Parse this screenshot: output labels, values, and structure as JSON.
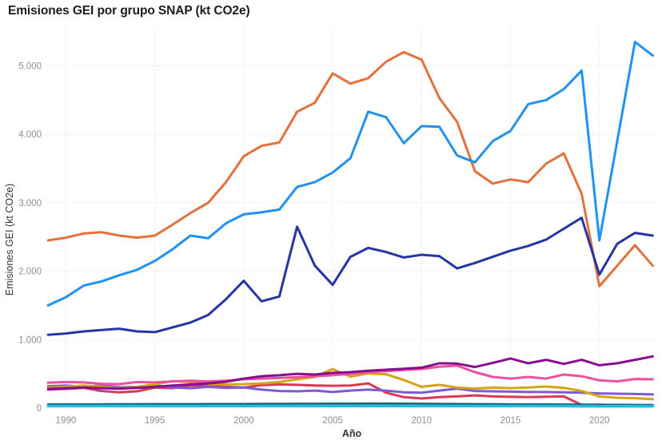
{
  "chart_data": {
    "type": "line",
    "title": "Emisiones GEI por grupo SNAP (kt CO2e)",
    "xlabel": "Año",
    "ylabel": "Emisiones GEI (kt CO2e)",
    "grid": "dotted",
    "legend": "none",
    "xlim": [
      1988.9,
      2023.25
    ],
    "ylim": [
      0,
      5565
    ],
    "x_ticks": [
      1990,
      1995,
      2000,
      2005,
      2010,
      2015,
      2020
    ],
    "x_tick_labels": [
      "1990",
      "1995",
      "2000",
      "2005",
      "2010",
      "2015",
      "2020"
    ],
    "y_ticks": [
      0,
      1000,
      2000,
      3000,
      4000,
      5000
    ],
    "y_tick_labels": [
      "0",
      "1.000",
      "2.000",
      "3.000",
      "4.000",
      "5.000"
    ],
    "x": [
      1989,
      1990,
      1991,
      1992,
      1993,
      1994,
      1995,
      1996,
      1997,
      1998,
      1999,
      2000,
      2001,
      2002,
      2003,
      2004,
      2005,
      2006,
      2007,
      2008,
      2009,
      2010,
      2011,
      2012,
      2013,
      2014,
      2015,
      2016,
      2017,
      2018,
      2019,
      2020,
      2021,
      2022,
      2023
    ],
    "series": [
      {
        "name": "red",
        "color": "#d73a52",
        "values": [
          270,
          280,
          295,
          250,
          230,
          245,
          300,
          290,
          330,
          325,
          310,
          300,
          335,
          345,
          340,
          330,
          325,
          330,
          360,
          225,
          160,
          140,
          160,
          170,
          185,
          170,
          165,
          160,
          165,
          170,
          45,
          50,
          45,
          40,
          35
        ]
      },
      {
        "name": "violet",
        "color": "#7c5cd4",
        "values": [
          320,
          330,
          310,
          330,
          305,
          310,
          330,
          300,
          290,
          310,
          295,
          300,
          270,
          250,
          245,
          255,
          235,
          255,
          270,
          255,
          230,
          225,
          255,
          285,
          250,
          245,
          240,
          235,
          235,
          230,
          225,
          215,
          210,
          205,
          200
        ]
      },
      {
        "name": "gold",
        "color": "#d4a413",
        "values": [
          300,
          310,
          330,
          310,
          290,
          310,
          345,
          395,
          380,
          350,
          345,
          350,
          360,
          380,
          420,
          455,
          570,
          460,
          505,
          495,
          410,
          310,
          340,
          300,
          285,
          300,
          290,
          300,
          315,
          295,
          250,
          170,
          150,
          145,
          130
        ]
      },
      {
        "name": "pink",
        "color": "#ee4fa0",
        "values": [
          370,
          380,
          375,
          355,
          350,
          380,
          375,
          390,
          400,
          390,
          400,
          420,
          430,
          440,
          450,
          465,
          480,
          500,
          525,
          540,
          555,
          570,
          605,
          620,
          525,
          455,
          430,
          455,
          430,
          490,
          465,
          405,
          390,
          425,
          420
        ]
      },
      {
        "name": "dark-purple",
        "color": "#860f8e",
        "values": [
          280,
          290,
          300,
          290,
          285,
          295,
          310,
          330,
          345,
          360,
          385,
          430,
          465,
          480,
          500,
          490,
          515,
          525,
          545,
          560,
          575,
          590,
          655,
          650,
          600,
          660,
          725,
          655,
          705,
          645,
          705,
          625,
          655,
          705,
          755
        ]
      },
      {
        "name": "dark-teal",
        "color": "#156065",
        "values": [
          55,
          55,
          56,
          57,
          58,
          58,
          59,
          60,
          60,
          61,
          62,
          62,
          63,
          63,
          64,
          64,
          65,
          65,
          66,
          66,
          65,
          64,
          63,
          62,
          60,
          58,
          57,
          56,
          55,
          54,
          52,
          50,
          49,
          48,
          47
        ]
      },
      {
        "name": "cyan",
        "color": "#21bbe8",
        "values": [
          30,
          30,
          30,
          30,
          30,
          30,
          30,
          30,
          30,
          30,
          30,
          30,
          30,
          30,
          30,
          30,
          30,
          30,
          30,
          30,
          30,
          30,
          30,
          30,
          30,
          30,
          30,
          30,
          30,
          30,
          28,
          28,
          28,
          28,
          28
        ]
      },
      {
        "name": "orange",
        "color": "#e4713c",
        "values": [
          2450,
          2490,
          2550,
          2570,
          2520,
          2490,
          2520,
          2680,
          2850,
          3000,
          3300,
          3680,
          3830,
          3880,
          4330,
          4460,
          4890,
          4740,
          4820,
          5060,
          5200,
          5090,
          4530,
          4180,
          3460,
          3280,
          3340,
          3300,
          3570,
          3720,
          3130,
          1780,
          2080,
          2380,
          2080
        ]
      },
      {
        "name": "dark-blue",
        "color": "#2634a4",
        "values": [
          1070,
          1090,
          1120,
          1140,
          1160,
          1120,
          1110,
          1180,
          1250,
          1360,
          1590,
          1860,
          1560,
          1630,
          2650,
          2080,
          1800,
          2210,
          2340,
          2280,
          2200,
          2240,
          2220,
          2040,
          2120,
          2210,
          2300,
          2370,
          2460,
          2620,
          2780,
          1950,
          2400,
          2560,
          2520
        ]
      },
      {
        "name": "light-blue",
        "color": "#2191f2",
        "values": [
          1500,
          1620,
          1790,
          1850,
          1940,
          2020,
          2150,
          2320,
          2520,
          2480,
          2700,
          2830,
          2860,
          2900,
          3230,
          3300,
          3440,
          3650,
          4330,
          4250,
          3870,
          4120,
          4110,
          3690,
          3590,
          3900,
          4050,
          4440,
          4500,
          4660,
          4930,
          2450,
          3900,
          5350,
          5150
        ]
      }
    ],
    "colors": {
      "grid": "#d5d5d5",
      "tick_label": "#8f8f8f",
      "title": "#1c1c1c",
      "axis_title": "#333333"
    }
  }
}
